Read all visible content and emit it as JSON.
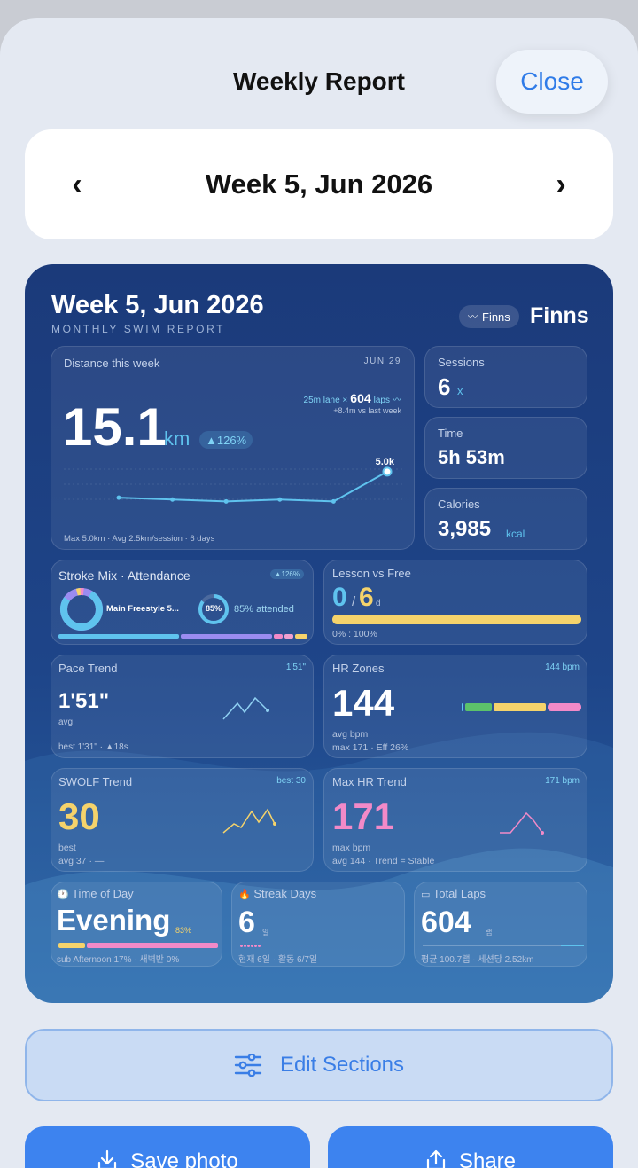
{
  "header": {
    "title": "Weekly Report",
    "close_label": "Close"
  },
  "week_nav": {
    "label": "Week 5, Jun 2026",
    "prev": "‹",
    "next": "›"
  },
  "report": {
    "title": "Week 5, Jun 2026",
    "subtitle": "MONTHLY SWIM REPORT",
    "brand_pill": "Finns",
    "brand": "Finns",
    "distance": {
      "label": "Distance this week",
      "date": "JUN 29",
      "value": "15.1",
      "unit": "km",
      "badge": "▲126%",
      "lane_prefix": "25m lane ×",
      "laps": "604",
      "laps_unit": "laps",
      "vs_last": "+8.4m vs last week",
      "peak_label": "5.0k",
      "footer": "Max 5.0km · Avg 2.5km/session · 6 days"
    },
    "sessions": {
      "label": "Sessions",
      "value": "6",
      "unit": "x"
    },
    "time": {
      "label": "Time",
      "value": "5h 53m"
    },
    "calories": {
      "label": "Calories",
      "value": "3,985",
      "unit": "kcal"
    },
    "stroke": {
      "label": "Stroke Mix · Attendance",
      "badge": "▲126%",
      "main": "Main Freestyle 5...",
      "ring_value": "85%",
      "attended": "85% attended"
    },
    "lesson": {
      "label": "Lesson vs Free",
      "a": "0",
      "sep": "/",
      "b": "6",
      "unit": "d",
      "ratio": "0% : 100%"
    },
    "pace": {
      "label": "Pace Trend",
      "tag": "1'51\"",
      "value": "1'51\"",
      "sub": "avg",
      "foot": "best 1'31\" · ▲18s"
    },
    "hr": {
      "label": "HR Zones",
      "tag": "144 bpm",
      "value": "144",
      "sub": "avg bpm",
      "foot": "max 171 · Eff 26%"
    },
    "swolf": {
      "label": "SWOLF Trend",
      "tag": "best 30",
      "value": "30",
      "sub": "best",
      "foot": "avg 37 · —"
    },
    "maxhr": {
      "label": "Max HR Trend",
      "tag": "171 bpm",
      "value": "171",
      "sub": "max bpm",
      "foot": "avg 144 · Trend = Stable"
    },
    "tod": {
      "icon": "🕐",
      "label": "Time of Day",
      "value": "Evening",
      "pct": "83%",
      "foot": "sub Afternoon 17% · 새벽반 0%"
    },
    "streak": {
      "icon": "🔥",
      "label": "Streak Days",
      "value": "6",
      "unit": "일",
      "foot": "현재 6일 · 활동 6/7일"
    },
    "laps": {
      "icon": "▭",
      "label": "Total Laps",
      "value": "604",
      "unit": "랩",
      "foot": "평균 100.7랩 · 세션당 2.52km"
    }
  },
  "chart_data": {
    "type": "line",
    "x": [
      1,
      2,
      3,
      4,
      5,
      6
    ],
    "values": [
      2.3,
      2.1,
      1.9,
      2.1,
      1.9,
      5.0
    ],
    "ylim": [
      0,
      6
    ]
  },
  "actions": {
    "edit": "Edit Sections",
    "save": "Save photo",
    "share": "Share"
  },
  "colors": {
    "accent": "#5fc3ee",
    "yellow": "#f5d36b",
    "pink": "#f28ac8",
    "green": "#5cc26a",
    "purple": "#9b8cf0"
  }
}
